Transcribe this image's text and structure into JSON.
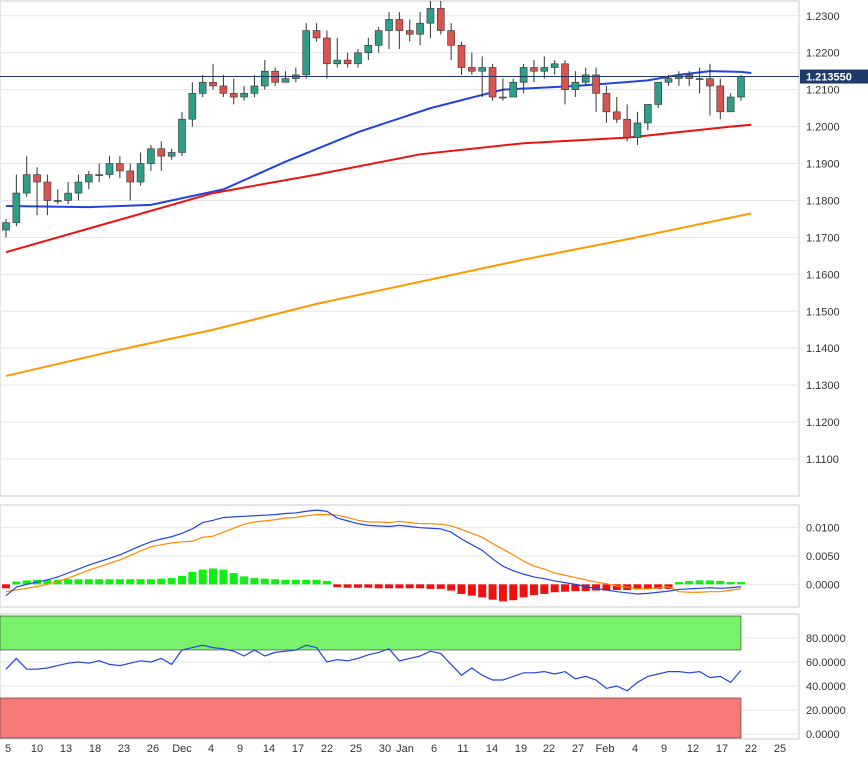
{
  "chart_data": [
    {
      "type": "candlestick",
      "title": "",
      "y_ticks": [
        "1.2300",
        "1.2200",
        "1.2100",
        "1.2000",
        "1.1900",
        "1.1800",
        "1.1700",
        "1.1600",
        "1.1500",
        "1.1400",
        "1.1300",
        "1.1200",
        "1.1100"
      ],
      "ylim": [
        1.1,
        1.234
      ],
      "x_ticks": [
        "5",
        "10",
        "13",
        "18",
        "23",
        "26",
        "Dec",
        "4",
        "9",
        "14",
        "17",
        "22",
        "25",
        "30",
        "Jan",
        "6",
        "11",
        "14",
        "19",
        "22",
        "27",
        "Feb",
        "4",
        "9",
        "12",
        "17",
        "22",
        "25"
      ],
      "current_price": "1.213550",
      "current_value": 1.21355,
      "grid": true,
      "series": [
        {
          "name": "",
          "type": "candles",
          "open": [
            1.172,
            1.174,
            1.182,
            1.187,
            1.185,
            1.18,
            1.18,
            1.182,
            1.185,
            1.187,
            1.187,
            1.19,
            1.188,
            1.185,
            1.19,
            1.194,
            1.192,
            1.193,
            1.202,
            1.209,
            1.212,
            1.211,
            1.209,
            1.208,
            1.209,
            1.211,
            1.215,
            1.212,
            1.213,
            1.214,
            1.226,
            1.224,
            1.217,
            1.218,
            1.217,
            1.22,
            1.222,
            1.226,
            1.229,
            1.226,
            1.225,
            1.228,
            1.232,
            1.226,
            1.222,
            1.216,
            1.215,
            1.216,
            1.208,
            1.208,
            1.212,
            1.216,
            1.215,
            1.216,
            1.217,
            1.21,
            1.212,
            1.214,
            1.209,
            1.204,
            1.202,
            1.197,
            1.201,
            1.206,
            1.212,
            1.213,
            1.214,
            1.213,
            1.213,
            1.211,
            1.204,
            1.208
          ],
          "high": [
            1.175,
            1.187,
            1.192,
            1.189,
            1.187,
            1.183,
            1.185,
            1.187,
            1.188,
            1.19,
            1.192,
            1.192,
            1.19,
            1.193,
            1.195,
            1.196,
            1.194,
            1.204,
            1.212,
            1.214,
            1.217,
            1.214,
            1.213,
            1.211,
            1.214,
            1.218,
            1.216,
            1.215,
            1.216,
            1.228,
            1.228,
            1.226,
            1.224,
            1.22,
            1.221,
            1.224,
            1.227,
            1.231,
            1.231,
            1.229,
            1.231,
            1.234,
            1.234,
            1.228,
            1.223,
            1.22,
            1.219,
            1.217,
            1.213,
            1.213,
            1.217,
            1.218,
            1.219,
            1.218,
            1.218,
            1.215,
            1.216,
            1.216,
            1.211,
            1.208,
            1.206,
            1.204,
            1.206,
            1.212,
            1.214,
            1.215,
            1.215,
            1.216,
            1.217,
            1.213,
            1.209,
            1.214
          ],
          "low": [
            1.17,
            1.173,
            1.181,
            1.176,
            1.176,
            1.179,
            1.179,
            1.18,
            1.183,
            1.185,
            1.186,
            1.186,
            1.18,
            1.184,
            1.188,
            1.188,
            1.191,
            1.192,
            1.2,
            1.208,
            1.21,
            1.208,
            1.206,
            1.207,
            1.208,
            1.21,
            1.211,
            1.212,
            1.212,
            1.213,
            1.223,
            1.213,
            1.216,
            1.216,
            1.216,
            1.218,
            1.22,
            1.221,
            1.221,
            1.223,
            1.222,
            1.224,
            1.225,
            1.218,
            1.214,
            1.214,
            1.208,
            1.207,
            1.207,
            1.208,
            1.209,
            1.212,
            1.213,
            1.214,
            1.206,
            1.208,
            1.211,
            1.204,
            1.201,
            1.201,
            1.196,
            1.195,
            1.199,
            1.205,
            1.211,
            1.211,
            1.211,
            1.209,
            1.203,
            1.202,
            1.204,
            1.207
          ],
          "close": [
            1.174,
            1.182,
            1.187,
            1.185,
            1.18,
            1.18,
            1.182,
            1.185,
            1.187,
            1.187,
            1.19,
            1.188,
            1.185,
            1.19,
            1.194,
            1.192,
            1.193,
            1.202,
            1.209,
            1.212,
            1.211,
            1.209,
            1.208,
            1.209,
            1.211,
            1.215,
            1.212,
            1.213,
            1.214,
            1.226,
            1.224,
            1.217,
            1.218,
            1.217,
            1.22,
            1.222,
            1.226,
            1.229,
            1.226,
            1.225,
            1.228,
            1.232,
            1.226,
            1.222,
            1.216,
            1.215,
            1.216,
            1.208,
            1.208,
            1.212,
            1.216,
            1.215,
            1.216,
            1.217,
            1.21,
            1.212,
            1.214,
            1.209,
            1.204,
            1.202,
            1.197,
            1.201,
            1.206,
            1.212,
            1.213,
            1.214,
            1.213,
            1.213,
            1.211,
            1.204,
            1.208,
            1.21355
          ],
          "colors": {
            "up": "#2e9e88",
            "down": "#d9534f"
          }
        },
        {
          "name": "",
          "type": "line",
          "color": "#2244dd",
          "x": [
            0,
            8,
            14,
            21,
            27,
            34,
            41,
            48,
            55,
            62,
            65,
            68,
            71,
            72
          ],
          "values": [
            1.1785,
            1.1782,
            1.1788,
            1.183,
            1.1905,
            1.1985,
            1.205,
            1.21,
            1.211,
            1.2125,
            1.214,
            1.215,
            1.2148,
            1.2145
          ]
        },
        {
          "name": "",
          "type": "line",
          "color": "#ee1111",
          "x": [
            0,
            10,
            20,
            30,
            40,
            50,
            60,
            65,
            70,
            72
          ],
          "values": [
            1.166,
            1.174,
            1.182,
            1.187,
            1.1925,
            1.1955,
            1.197,
            1.1985,
            1.2,
            1.2005
          ]
        },
        {
          "name": "",
          "type": "line",
          "color": "#ff9900",
          "x": [
            0,
            10,
            20,
            30,
            40,
            50,
            60,
            72
          ],
          "values": [
            1.1325,
            1.139,
            1.145,
            1.152,
            1.158,
            1.164,
            1.1695,
            1.1765
          ]
        }
      ]
    },
    {
      "type": "macd",
      "y_ticks": [
        "0.0100",
        "0.0050",
        "0.0000"
      ],
      "ylim": [
        -0.004,
        0.014
      ],
      "histogram": [
        -0.0007,
        0.0005,
        0.0007,
        0.0008,
        0.0008,
        0.0008,
        0.0009,
        0.0009,
        0.0009,
        0.0009,
        0.0009,
        0.0009,
        0.0009,
        0.0009,
        0.0009,
        0.001,
        0.0011,
        0.0015,
        0.0022,
        0.0026,
        0.0028,
        0.0026,
        0.002,
        0.0014,
        0.0011,
        0.001,
        0.0009,
        0.0008,
        0.0008,
        0.0008,
        0.0008,
        0.0006,
        -0.0005,
        -0.0006,
        -0.0006,
        -0.0006,
        -0.0007,
        -0.0007,
        -0.0007,
        -0.0007,
        -0.0007,
        -0.0008,
        -0.0008,
        -0.0011,
        -0.0017,
        -0.002,
        -0.0023,
        -0.0027,
        -0.003,
        -0.0028,
        -0.0023,
        -0.0019,
        -0.0017,
        -0.0014,
        -0.0013,
        -0.0012,
        -0.0012,
        -0.0011,
        -0.0011,
        -0.001,
        -0.001,
        -0.0009,
        -0.0008,
        -0.0008,
        -0.0008,
        0.0004,
        0.0006,
        0.0007,
        0.0007,
        0.0006,
        0.0004,
        0.0004
      ],
      "macd_line": {
        "color": "#2244dd",
        "values": [
          -0.002,
          -0.0005,
          0.0,
          0.0004,
          0.0008,
          0.0013,
          0.002,
          0.0027,
          0.0034,
          0.004,
          0.0046,
          0.0052,
          0.006,
          0.0068,
          0.0075,
          0.008,
          0.0084,
          0.009,
          0.0098,
          0.0109,
          0.0113,
          0.0118,
          0.0119,
          0.012,
          0.0121,
          0.0122,
          0.0123,
          0.0125,
          0.0126,
          0.0129,
          0.0131,
          0.0129,
          0.0117,
          0.0112,
          0.0107,
          0.0104,
          0.0103,
          0.0102,
          0.0104,
          0.0102,
          0.01,
          0.0099,
          0.0098,
          0.0092,
          0.008,
          0.007,
          0.006,
          0.0045,
          0.0032,
          0.0024,
          0.0018,
          0.0013,
          0.001,
          0.0006,
          0.0003,
          0.0,
          -0.0004,
          -0.0007,
          -0.001,
          -0.0013,
          -0.0015,
          -0.0017,
          -0.0016,
          -0.0014,
          -0.0012,
          -0.0009,
          -0.0008,
          -0.0007,
          -0.0006,
          -0.0007,
          -0.0006,
          -0.0004
        ]
      },
      "signal_line": {
        "color": "#ff8800",
        "values": [
          -0.0013,
          -0.001,
          -0.0007,
          -0.0004,
          0.0,
          0.0005,
          0.0011,
          0.0018,
          0.0025,
          0.0031,
          0.0037,
          0.0043,
          0.0051,
          0.0059,
          0.0066,
          0.007,
          0.0073,
          0.0075,
          0.0076,
          0.0083,
          0.0085,
          0.0092,
          0.0099,
          0.0106,
          0.011,
          0.0112,
          0.0114,
          0.0117,
          0.0118,
          0.0121,
          0.0123,
          0.0123,
          0.0122,
          0.0118,
          0.0113,
          0.011,
          0.011,
          0.0109,
          0.0111,
          0.0109,
          0.0107,
          0.0107,
          0.0106,
          0.0103,
          0.0097,
          0.009,
          0.0083,
          0.0072,
          0.0062,
          0.0052,
          0.0041,
          0.0032,
          0.0027,
          0.002,
          0.0016,
          0.0012,
          0.0008,
          0.0004,
          0.0001,
          -0.0003,
          -0.0005,
          -0.0008,
          -0.0008,
          -0.0006,
          -0.0004,
          -0.0013,
          -0.0014,
          -0.0014,
          -0.0013,
          -0.0013,
          -0.001,
          -0.0008
        ]
      },
      "colors": {
        "pos": "#11ee11",
        "neg": "#ee1111"
      }
    },
    {
      "type": "rsi",
      "y_ticks": [
        "80.0000",
        "60.0000",
        "40.0000",
        "20.0000",
        "0.0000"
      ],
      "ylim": [
        0,
        100
      ],
      "overbought": 70,
      "oversold": 30,
      "colors": {
        "ob": "#77f26a",
        "os": "#f77a78",
        "line": "#2244dd"
      },
      "values": [
        54,
        63,
        54,
        54,
        55,
        57,
        59,
        60,
        59,
        61,
        58,
        57,
        59,
        61,
        60,
        63,
        58,
        70,
        72,
        74,
        72,
        71,
        69,
        65,
        70,
        65,
        68,
        69,
        70,
        74,
        72,
        60,
        62,
        61,
        63,
        66,
        68,
        71,
        61,
        63,
        65,
        69,
        67,
        58,
        49,
        55,
        49,
        45,
        45,
        48,
        51,
        51,
        52,
        50,
        52,
        46,
        48,
        45,
        38,
        40,
        36,
        43,
        48,
        50,
        52,
        52,
        51,
        52,
        47,
        48,
        43,
        53
      ]
    }
  ]
}
